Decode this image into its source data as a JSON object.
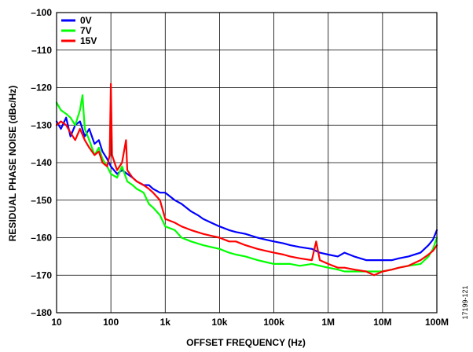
{
  "chart_data": {
    "type": "line",
    "title": "",
    "xlabel": "OFFSET FREQUENCY (Hz)",
    "ylabel": "RESIDUAL PHASE NOISE (dBc/Hz)",
    "x_scale": "log",
    "xlim": [
      10,
      100000000
    ],
    "ylim": [
      -180,
      -100
    ],
    "x_ticks": [
      {
        "value": 10,
        "label": "10"
      },
      {
        "value": 100,
        "label": "100"
      },
      {
        "value": 1000,
        "label": "1k"
      },
      {
        "value": 10000,
        "label": "10k"
      },
      {
        "value": 100000,
        "label": "100k"
      },
      {
        "value": 1000000,
        "label": "1M"
      },
      {
        "value": 10000000,
        "label": "10M"
      },
      {
        "value": 100000000,
        "label": "100M"
      }
    ],
    "y_ticks": [
      {
        "value": -100,
        "label": "–100"
      },
      {
        "value": -110,
        "label": "–110"
      },
      {
        "value": -120,
        "label": "–120"
      },
      {
        "value": -130,
        "label": "–130"
      },
      {
        "value": -140,
        "label": "–140"
      },
      {
        "value": -150,
        "label": "–150"
      },
      {
        "value": -160,
        "label": "–160"
      },
      {
        "value": -170,
        "label": "–170"
      },
      {
        "value": -180,
        "label": "–180"
      }
    ],
    "grid": true,
    "legend": {
      "position": "top-left"
    },
    "series": [
      {
        "name": "0V",
        "color": "#0000ff",
        "points": [
          [
            10,
            -129
          ],
          [
            12,
            -131
          ],
          [
            15,
            -128
          ],
          [
            18,
            -133
          ],
          [
            22,
            -130
          ],
          [
            27,
            -129
          ],
          [
            33,
            -133
          ],
          [
            40,
            -131
          ],
          [
            50,
            -135
          ],
          [
            60,
            -134
          ],
          [
            70,
            -137
          ],
          [
            85,
            -139
          ],
          [
            100,
            -141
          ],
          [
            130,
            -143
          ],
          [
            160,
            -142
          ],
          [
            200,
            -143
          ],
          [
            250,
            -144
          ],
          [
            300,
            -145
          ],
          [
            400,
            -146
          ],
          [
            500,
            -146
          ],
          [
            600,
            -147
          ],
          [
            800,
            -148
          ],
          [
            1000,
            -148
          ],
          [
            1500,
            -150
          ],
          [
            2000,
            -151
          ],
          [
            3000,
            -153
          ],
          [
            4000,
            -154
          ],
          [
            5000,
            -155
          ],
          [
            7000,
            -156
          ],
          [
            10000,
            -157
          ],
          [
            15000,
            -158
          ],
          [
            20000,
            -158.5
          ],
          [
            30000,
            -159
          ],
          [
            50000,
            -160
          ],
          [
            70000,
            -160.5
          ],
          [
            100000,
            -161
          ],
          [
            150000,
            -161.5
          ],
          [
            200000,
            -162
          ],
          [
            300000,
            -162.5
          ],
          [
            500000,
            -163
          ],
          [
            700000,
            -164
          ],
          [
            1000000,
            -164.5
          ],
          [
            1500000,
            -165
          ],
          [
            2000000,
            -164
          ],
          [
            3000000,
            -165
          ],
          [
            5000000,
            -166
          ],
          [
            7000000,
            -166
          ],
          [
            10000000,
            -166
          ],
          [
            15000000,
            -166
          ],
          [
            20000000,
            -165.5
          ],
          [
            30000000,
            -165
          ],
          [
            50000000,
            -164
          ],
          [
            70000000,
            -162
          ],
          [
            85000000,
            -160.5
          ],
          [
            100000000,
            -158
          ]
        ]
      },
      {
        "name": "7V",
        "color": "#00ff00",
        "points": [
          [
            10,
            -124
          ],
          [
            12,
            -126
          ],
          [
            15,
            -127
          ],
          [
            18,
            -128
          ],
          [
            22,
            -130
          ],
          [
            27,
            -126
          ],
          [
            30,
            -122
          ],
          [
            33,
            -131
          ],
          [
            40,
            -134
          ],
          [
            50,
            -138
          ],
          [
            60,
            -136
          ],
          [
            70,
            -139
          ],
          [
            85,
            -141
          ],
          [
            100,
            -143
          ],
          [
            130,
            -144
          ],
          [
            160,
            -141
          ],
          [
            200,
            -145
          ],
          [
            250,
            -146
          ],
          [
            300,
            -147
          ],
          [
            400,
            -148
          ],
          [
            500,
            -151
          ],
          [
            600,
            -152
          ],
          [
            800,
            -154
          ],
          [
            1000,
            -157
          ],
          [
            1500,
            -158
          ],
          [
            2000,
            -160
          ],
          [
            3000,
            -161
          ],
          [
            5000,
            -162
          ],
          [
            7000,
            -162.5
          ],
          [
            10000,
            -163
          ],
          [
            15000,
            -164
          ],
          [
            20000,
            -164.5
          ],
          [
            30000,
            -165
          ],
          [
            50000,
            -166
          ],
          [
            70000,
            -166.5
          ],
          [
            100000,
            -167
          ],
          [
            150000,
            -167
          ],
          [
            200000,
            -167
          ],
          [
            300000,
            -167.5
          ],
          [
            500000,
            -167
          ],
          [
            700000,
            -167.5
          ],
          [
            1000000,
            -168
          ],
          [
            1500000,
            -168.5
          ],
          [
            2000000,
            -169
          ],
          [
            3000000,
            -169
          ],
          [
            5000000,
            -169
          ],
          [
            7000000,
            -169
          ],
          [
            10000000,
            -169
          ],
          [
            15000000,
            -168.5
          ],
          [
            20000000,
            -168
          ],
          [
            30000000,
            -167.5
          ],
          [
            50000000,
            -167
          ],
          [
            70000000,
            -165
          ],
          [
            85000000,
            -163
          ],
          [
            100000000,
            -160
          ]
        ]
      },
      {
        "name": "15V",
        "color": "#ff0000",
        "points": [
          [
            10,
            -130
          ],
          [
            12,
            -129
          ],
          [
            15,
            -130
          ],
          [
            18,
            -132
          ],
          [
            22,
            -134
          ],
          [
            27,
            -131
          ],
          [
            33,
            -134
          ],
          [
            40,
            -136
          ],
          [
            50,
            -138
          ],
          [
            60,
            -137
          ],
          [
            70,
            -140
          ],
          [
            85,
            -141
          ],
          [
            95,
            -138
          ],
          [
            100,
            -119
          ],
          [
            105,
            -138
          ],
          [
            130,
            -142
          ],
          [
            160,
            -140
          ],
          [
            190,
            -134
          ],
          [
            200,
            -142
          ],
          [
            250,
            -144
          ],
          [
            300,
            -145
          ],
          [
            400,
            -146
          ],
          [
            500,
            -147
          ],
          [
            600,
            -148
          ],
          [
            800,
            -150
          ],
          [
            1000,
            -155
          ],
          [
            1500,
            -156
          ],
          [
            2000,
            -157
          ],
          [
            3000,
            -158
          ],
          [
            5000,
            -159
          ],
          [
            7000,
            -159.5
          ],
          [
            10000,
            -160
          ],
          [
            15000,
            -161
          ],
          [
            20000,
            -161
          ],
          [
            30000,
            -162
          ],
          [
            50000,
            -163
          ],
          [
            70000,
            -163.5
          ],
          [
            100000,
            -164
          ],
          [
            150000,
            -164.5
          ],
          [
            200000,
            -165
          ],
          [
            300000,
            -165.5
          ],
          [
            500000,
            -166
          ],
          [
            600000,
            -161
          ],
          [
            700000,
            -166
          ],
          [
            1000000,
            -167
          ],
          [
            1500000,
            -168
          ],
          [
            2000000,
            -168
          ],
          [
            3000000,
            -168.5
          ],
          [
            5000000,
            -169
          ],
          [
            7000000,
            -170
          ],
          [
            10000000,
            -169
          ],
          [
            15000000,
            -168.5
          ],
          [
            20000000,
            -168
          ],
          [
            30000000,
            -167.5
          ],
          [
            50000000,
            -166
          ],
          [
            70000000,
            -164.5
          ],
          [
            85000000,
            -163.5
          ],
          [
            100000000,
            -162
          ]
        ]
      }
    ]
  },
  "figure_id": "17199-121"
}
